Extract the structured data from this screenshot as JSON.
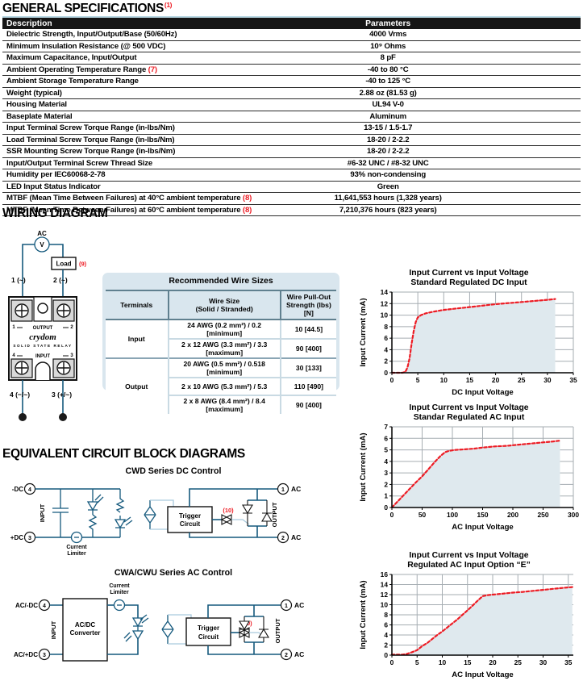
{
  "colors": {
    "accent_red": "#ed1c24",
    "wire_blue": "#15597d",
    "fill_blue": "#dfe9ee",
    "card_blue": "#d9e6ee",
    "grid_gray": "#a6adb2"
  },
  "sections": {
    "general": {
      "title": "GENERAL SPECIFICATIONS",
      "note": "(1)"
    },
    "wiring": {
      "title": "WIRING DIAGRAM"
    },
    "circuits": {
      "title": "EQUIVALENT CIRCUIT BLOCK DIAGRAMS"
    }
  },
  "spec_table": {
    "headers": [
      "Description",
      "Parameters"
    ],
    "rows": [
      {
        "description": "Dielectric Strength, Input/Output/Base (50/60Hz)",
        "note": "",
        "parameter": "4000 Vrms"
      },
      {
        "description": "Minimum Insulation Resistance (@ 500 VDC)",
        "note": "",
        "parameter": "10⁹ Ohms"
      },
      {
        "description": "Maximum Capacitance, Input/Output",
        "note": "",
        "parameter": "8 pF"
      },
      {
        "description": "Ambient Operating Temperature Range",
        "note": "(7)",
        "parameter": "-40 to 80 °C"
      },
      {
        "description": "Ambient Storage Temperature Range",
        "note": "",
        "parameter": "-40 to 125 °C"
      },
      {
        "description": "Weight (typical)",
        "note": "",
        "parameter": "2.88 oz (81.53 g)"
      },
      {
        "description": "Housing Material",
        "note": "",
        "parameter": "UL94 V-0"
      },
      {
        "description": "Baseplate Material",
        "note": "",
        "parameter": "Aluminum"
      },
      {
        "description": "Input Terminal Screw Torque Range (in-lbs/Nm)",
        "note": "",
        "parameter": "13-15 / 1.5-1.7"
      },
      {
        "description": "Load Terminal Screw Torque Range (in-lbs/Nm)",
        "note": "",
        "parameter": "18-20 / 2-2.2"
      },
      {
        "description": "SSR Mounting Screw Torque Range (in-lbs/Nm)",
        "note": "",
        "parameter": "18-20 / 2-2.2"
      },
      {
        "description": "Input/Output Terminal Screw Thread Size",
        "note": "",
        "parameter": "#6-32 UNC / #8-32 UNC"
      },
      {
        "description": "Humidity per IEC60068-2-78",
        "note": "",
        "parameter": "93% non-condensing"
      },
      {
        "description": "LED Input Status Indicator",
        "note": "",
        "parameter": "Green"
      },
      {
        "description": "MTBF (Mean Time Between Failures) at 40°C ambient temperature",
        "note": "(8)",
        "parameter": "11,641,553 hours (1,328 years)"
      },
      {
        "description": "MTBF (Mean Time Between Failures) at 60°C ambient temperature",
        "note": "(8)",
        "parameter": "7,210,376 hours (823 years)"
      }
    ]
  },
  "wiring": {
    "source_label": "AC",
    "meter": "V",
    "load": "Load",
    "note": "(9)",
    "top_terminals": [
      "1 (~)",
      "2 (~)"
    ],
    "bottom_terminals": [
      "4 (−/~)",
      "3 (+/~)"
    ],
    "relay": {
      "out_left": "1",
      "out_right": "2",
      "output": "OUTPUT",
      "brand": "crydom",
      "brand_sub": "SOLID STATE RELAY",
      "in_left": "4",
      "in_right": "3",
      "input": "INPUT"
    }
  },
  "wire_table": {
    "title": "Recommended Wire Sizes",
    "columns": [
      {
        "lines": [
          "Terminals"
        ]
      },
      {
        "lines": [
          "Wire Size",
          "(Solid / Stranded)"
        ]
      },
      {
        "lines": [
          "Wire Pull-Out",
          "Strength (lbs)[N]"
        ]
      }
    ],
    "groups": [
      {
        "terminal": "Input",
        "rows": [
          {
            "size": "24 AWG (0.2 mm²) / 0.2  [minimum]",
            "strength": "10 [44.5]"
          },
          {
            "size": "2 x 12 AWG (3.3 mm²) / 3.3  [maximum]",
            "strength": "90 [400]"
          }
        ]
      },
      {
        "terminal": "Output",
        "rows": [
          {
            "size": "20 AWG (0.5 mm²) / 0.518  [minimum]",
            "strength": "30 [133]"
          },
          {
            "size": "2 x 10 AWG (5.3 mm²) / 5.3",
            "strength": "110 [490]"
          },
          {
            "size": "2 x 8 AWG (8.4 mm²) / 8.4  [maximum]",
            "strength": "90 [400]"
          }
        ]
      }
    ]
  },
  "circuits": {
    "cwd": {
      "title": "CWD Series DC Control",
      "neg": "-DC",
      "pos": "+DC",
      "pin4": "4",
      "pin3": "3",
      "input": "INPUT",
      "cl1": "Current",
      "cl2": "Limiter",
      "tr1": "Trigger",
      "tr2": "Circuit",
      "note": "(10)",
      "pin1": "1",
      "pin2": "2",
      "ac1": "AC",
      "ac2": "AC",
      "output": "OUTPUT"
    },
    "cwa": {
      "title": "CWA/CWU Series AC Control",
      "neg": "AC/-DC",
      "pos": "AC/+DC",
      "pin4": "4",
      "pin3": "3",
      "input": "INPUT",
      "cv1": "AC/DC",
      "cv2": "Converter",
      "cl1": "Current",
      "cl2": "Limiter",
      "tr1": "Trigger",
      "tr2": "Circuit",
      "note": "(10)",
      "pin1": "1",
      "pin2": "2",
      "ac1": "AC",
      "ac2": "AC",
      "output": "OUTPUT"
    }
  },
  "chart_data": [
    {
      "type": "area",
      "title_line1": "Input Current vs Input Voltage",
      "title_line2": "Standard Regulated DC Input",
      "xlabel": "DC Input Voltage",
      "ylabel": "Input Current (mA)",
      "xlim": [
        0,
        35
      ],
      "ylim": [
        0,
        14
      ],
      "xticks": [
        0,
        5,
        10,
        15,
        20,
        25,
        30,
        35
      ],
      "yticks": [
        0,
        2,
        4,
        6,
        8,
        10,
        12,
        14
      ],
      "grid": true,
      "legend": "none",
      "points": [
        [
          0,
          0
        ],
        [
          2,
          0
        ],
        [
          2.6,
          0.15
        ],
        [
          3,
          0.9
        ],
        [
          3.4,
          2.5
        ],
        [
          3.8,
          5
        ],
        [
          4.2,
          7.2
        ],
        [
          4.6,
          8.8
        ],
        [
          5,
          9.6
        ],
        [
          5.6,
          10
        ],
        [
          6.5,
          10.3
        ],
        [
          8,
          10.6
        ],
        [
          10,
          10.9
        ],
        [
          12,
          11.1
        ],
        [
          14,
          11.3
        ],
        [
          16,
          11.5
        ],
        [
          18,
          11.7
        ],
        [
          20,
          11.9
        ],
        [
          22,
          12.05
        ],
        [
          24,
          12.2
        ],
        [
          26,
          12.35
        ],
        [
          28,
          12.5
        ],
        [
          30,
          12.65
        ],
        [
          31.5,
          12.8
        ]
      ]
    },
    {
      "type": "area",
      "title_line1": "Input Current vs Input Voltage",
      "title_line2": "Standar Regulated AC Input",
      "xlabel": "AC Input Voltage",
      "ylabel": "Input Current (mA)",
      "xlim": [
        0,
        300
      ],
      "ylim": [
        0,
        7
      ],
      "xticks": [
        0,
        50,
        100,
        150,
        200,
        250,
        300
      ],
      "yticks": [
        0,
        1,
        2,
        3,
        4,
        5,
        6,
        7
      ],
      "grid": true,
      "legend": "none",
      "points": [
        [
          0,
          0
        ],
        [
          10,
          0.55
        ],
        [
          20,
          1.1
        ],
        [
          30,
          1.65
        ],
        [
          40,
          2.2
        ],
        [
          50,
          2.7
        ],
        [
          60,
          3.3
        ],
        [
          70,
          3.9
        ],
        [
          80,
          4.45
        ],
        [
          88,
          4.8
        ],
        [
          95,
          4.92
        ],
        [
          105,
          5
        ],
        [
          120,
          5.05
        ],
        [
          135,
          5.1
        ],
        [
          150,
          5.2
        ],
        [
          170,
          5.3
        ],
        [
          190,
          5.35
        ],
        [
          210,
          5.45
        ],
        [
          230,
          5.55
        ],
        [
          250,
          5.65
        ],
        [
          265,
          5.72
        ],
        [
          278,
          5.8
        ]
      ]
    },
    {
      "type": "area",
      "title_line1": "Input Current vs Input Voltage",
      "title_line2": "Regulated AC Input Option “E”",
      "xlabel": "AC Input Voltage",
      "ylabel": "Input Current (mA)",
      "xlim": [
        0,
        36
      ],
      "ylim": [
        0,
        16
      ],
      "xticks": [
        0,
        5,
        10,
        15,
        20,
        25,
        30,
        35
      ],
      "yticks": [
        0,
        2,
        4,
        6,
        8,
        10,
        12,
        14,
        16
      ],
      "grid": true,
      "legend": "none",
      "points": [
        [
          0,
          0.1
        ],
        [
          2,
          0.1
        ],
        [
          3,
          0.25
        ],
        [
          4,
          0.6
        ],
        [
          5,
          1
        ],
        [
          6,
          1.8
        ],
        [
          7,
          2.4
        ],
        [
          8,
          3.2
        ],
        [
          9,
          4
        ],
        [
          10,
          4.7
        ],
        [
          11,
          5.5
        ],
        [
          12,
          6.3
        ],
        [
          13,
          7.1
        ],
        [
          14,
          8
        ],
        [
          15,
          8.9
        ],
        [
          16,
          9.8
        ],
        [
          17,
          10.8
        ],
        [
          18,
          11.7
        ],
        [
          19,
          11.9
        ],
        [
          20,
          12
        ],
        [
          22,
          12.2
        ],
        [
          24,
          12.4
        ],
        [
          26,
          12.55
        ],
        [
          28,
          12.75
        ],
        [
          30,
          12.95
        ],
        [
          32,
          13.15
        ],
        [
          34,
          13.35
        ],
        [
          35.8,
          13.5
        ]
      ]
    }
  ]
}
